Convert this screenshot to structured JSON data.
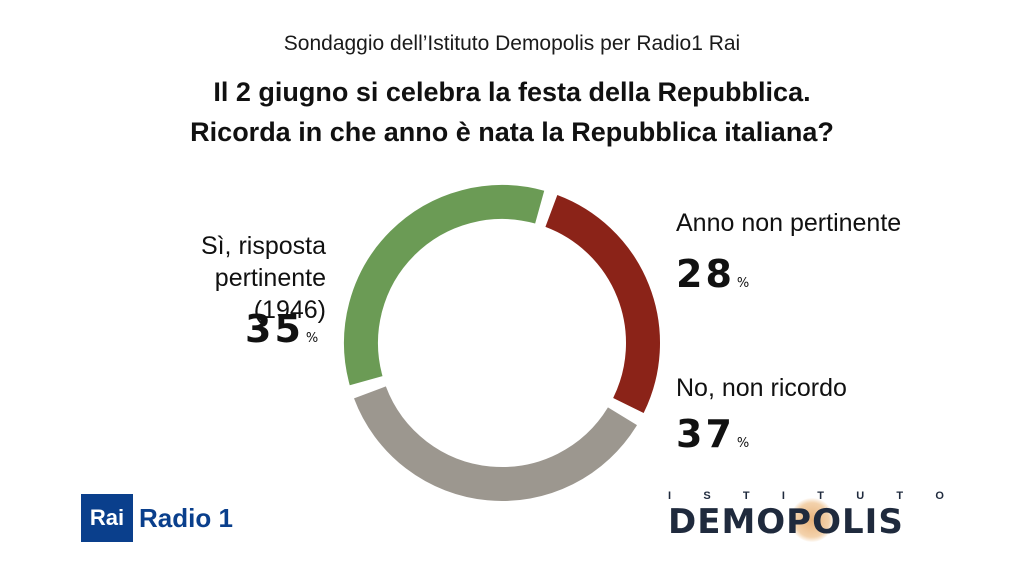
{
  "header": {
    "subtitle": "Sondaggio dell’Istituto Demopolis per Radio1 Rai",
    "title_line1": "Il 2 giugno si celebra la festa della Repubblica.",
    "title_line2": "Ricorda in che anno è nata la Repubblica italiana?"
  },
  "chart_data": {
    "type": "pie",
    "variant": "donut",
    "unit": "%",
    "slices": [
      {
        "label_line1": "Anno non pertinente",
        "label_line2": "",
        "value": 28,
        "value_text": "28",
        "color": "#8b2318"
      },
      {
        "label_line1": "No, non ricordo",
        "label_line2": "",
        "value": 37,
        "value_text": "37",
        "color": "#9c978f"
      },
      {
        "label_line1": "Sì, risposta pertinente",
        "label_line2": "(1946)",
        "value": 35,
        "value_text": "35",
        "color": "#6b9b55"
      }
    ]
  },
  "logos": {
    "rai_box": "Rai",
    "rai_radio": "Radio 1",
    "demopolis_top": [
      "I",
      "S",
      "T",
      "I",
      "T",
      "U",
      "T",
      "O"
    ],
    "demopolis_main": "DEMOPOLIS"
  }
}
